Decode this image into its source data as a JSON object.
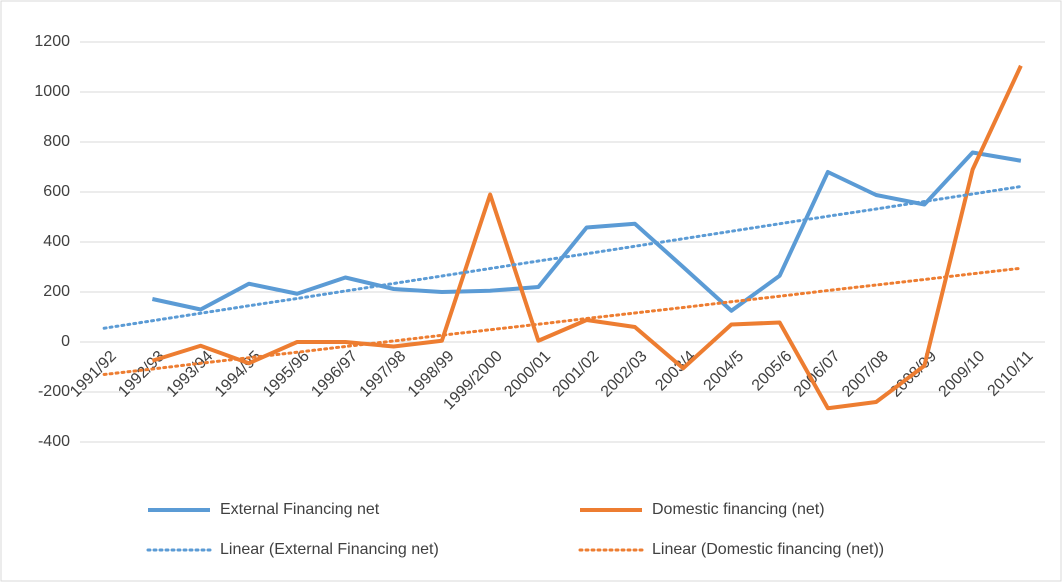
{
  "chart_data": {
    "type": "line",
    "categories": [
      "1991/92",
      "1992/93",
      "1993/94",
      "1994/95",
      "1995/96",
      "1996/97",
      "1997/98",
      "1998/99",
      "1999/2000",
      "2000/01",
      "2001/02",
      "2002/03",
      "2003/4",
      "2004/5",
      "2005/6",
      "2006/07",
      "2007/08",
      "2008/09",
      "2009/10",
      "2010/11"
    ],
    "series": [
      {
        "name": "External Financing net",
        "color": "#5b9bd5",
        "style": "solid",
        "values": [
          null,
          172,
          130,
          233,
          193,
          258,
          212,
          200,
          205,
          220,
          458,
          473,
          300,
          125,
          265,
          680,
          588,
          550,
          758,
          725
        ]
      },
      {
        "name": "Domestic financing (net)",
        "color": "#ed7d31",
        "style": "solid",
        "values": [
          null,
          -75,
          -15,
          -85,
          0,
          0,
          -18,
          5,
          590,
          5,
          88,
          60,
          -105,
          70,
          78,
          -265,
          -240,
          -95,
          690,
          1105
        ]
      },
      {
        "name": "Linear (External Financing net)",
        "color": "#5b9bd5",
        "style": "dotted",
        "values": [
          55,
          85,
          115,
          145,
          174,
          204,
          234,
          264,
          294,
          324,
          353,
          383,
          413,
          443,
          473,
          503,
          532,
          562,
          592,
          622
        ]
      },
      {
        "name": "Linear (Domestic financing (net))",
        "color": "#ed7d31",
        "style": "dotted",
        "values": [
          -130,
          -108,
          -85,
          -63,
          -41,
          -18,
          4,
          27,
          49,
          71,
          94,
          116,
          138,
          161,
          183,
          206,
          228,
          250,
          273,
          295
        ]
      }
    ],
    "ylim": [
      -400,
      1200
    ],
    "yticks": [
      -400,
      -200,
      0,
      200,
      400,
      600,
      800,
      1000,
      1200
    ],
    "grid": true,
    "legend": "bottom"
  }
}
